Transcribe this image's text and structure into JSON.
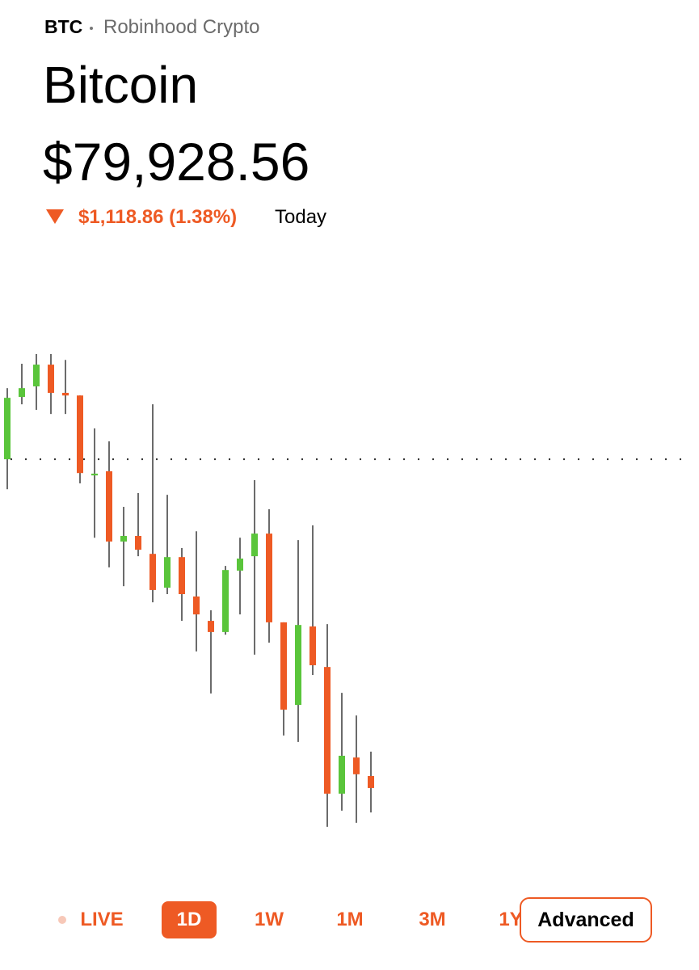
{
  "header": {
    "symbol": "BTC",
    "source": "Robinhood Crypto",
    "name": "Bitcoin",
    "price": "$79,928.56",
    "change": "$1,118.86 (1.38%)",
    "period": "Today"
  },
  "chart_data": {
    "type": "candlestick",
    "open": [
      81047,
      81259,
      81295,
      81369,
      81273,
      81264,
      80992,
      81006,
      80767,
      80786,
      80725,
      80610,
      80714,
      80580,
      80497,
      80459,
      80668,
      80717,
      80794,
      80492,
      80211,
      80478,
      80340,
      79909,
      80032,
      79969
    ],
    "high": [
      81289,
      81372,
      81405,
      81405,
      81385,
      81264,
      81152,
      81108,
      80885,
      80932,
      81234,
      80926,
      80745,
      80802,
      80533,
      80684,
      80780,
      80976,
      80877,
      80492,
      80772,
      80822,
      80486,
      80252,
      80175,
      80052
    ],
    "low": [
      80945,
      81234,
      81215,
      81201,
      81201,
      80965,
      80780,
      80679,
      80615,
      80717,
      80560,
      80588,
      80497,
      80393,
      80250,
      80450,
      80519,
      80382,
      80423,
      80107,
      80085,
      80313,
      79796,
      79851,
      79810,
      79845
    ],
    "close": [
      81256,
      81289,
      81369,
      81273,
      81264,
      81000,
      80998,
      80767,
      80786,
      80739,
      80602,
      80714,
      80588,
      80519,
      80459,
      80670,
      80709,
      80794,
      80492,
      80195,
      80483,
      80346,
      79909,
      80038,
      79975,
      79928
    ],
    "ylim": [
      79749,
      81427
    ],
    "reference_line": 81047,
    "up_color": "#5ac53b",
    "down_color": "#ee5a24"
  },
  "tabs": [
    "LIVE",
    "1D",
    "1W",
    "1M",
    "3M",
    "1Y"
  ],
  "active_tab": 1,
  "advanced_button": "Advanced"
}
